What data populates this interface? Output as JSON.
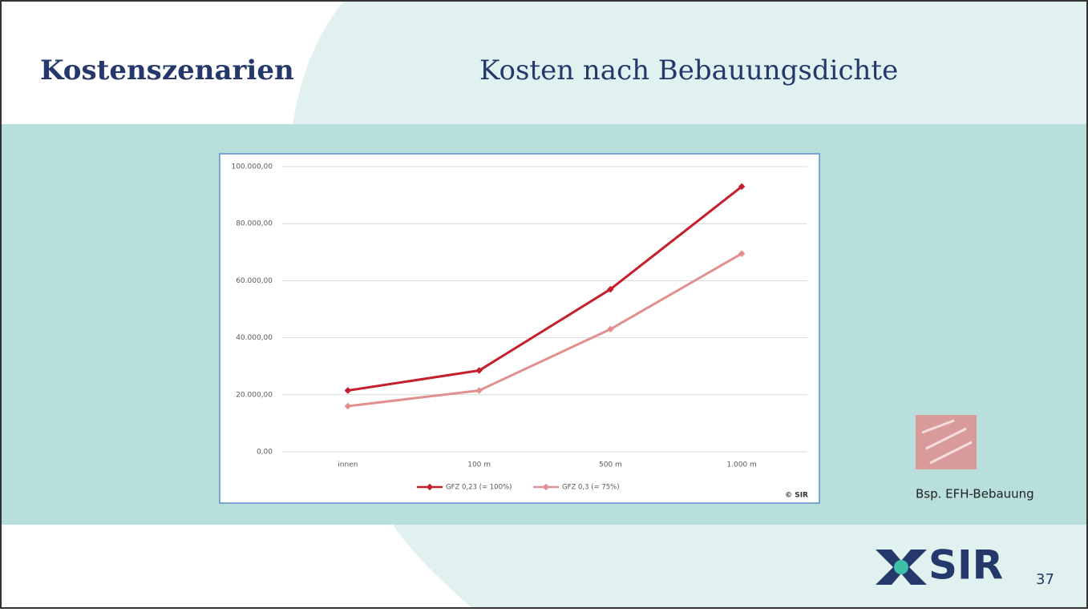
{
  "slide": {
    "title": "Kostenszenarien",
    "subtitle": "Kosten nach Bebauungsdichte",
    "image_caption": "Bsp. EFH-Bebauung",
    "logo": "SIR",
    "page_number": "37"
  },
  "chart_data": {
    "type": "line",
    "categories": [
      "innen",
      "100 m",
      "500 m",
      "1.000 m"
    ],
    "series": [
      {
        "name": "GFZ 0,23 (= 100%)",
        "color": "#c41f2a",
        "values": [
          21500,
          28500,
          57000,
          93000
        ]
      },
      {
        "name": "GFZ 0,3 (= 75%)",
        "color": "#e0908f",
        "values": [
          16000,
          21500,
          43000,
          69500
        ]
      }
    ],
    "ylim": [
      0,
      100000
    ],
    "yticks": [
      {
        "value": 0,
        "label": "0,00"
      },
      {
        "value": 20000,
        "label": "20.000,00"
      },
      {
        "value": 40000,
        "label": "40.000,00"
      },
      {
        "value": 60000,
        "label": "60.000,00"
      },
      {
        "value": 80000,
        "label": "80.000,00"
      },
      {
        "value": 100000,
        "label": "100.000,00"
      }
    ],
    "grid": true,
    "legend": "bottom",
    "annotation": "© SIR"
  }
}
